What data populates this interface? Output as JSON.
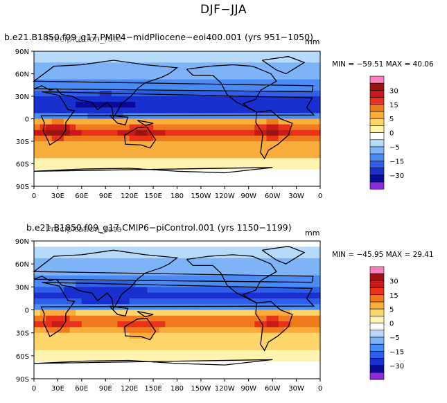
{
  "figure_title": "DJF−JJA",
  "panels": [
    {
      "title": "b.e21.B1850.f09_g17.PMIP4−midPliocene−eoi400.001  (yrs 951−1050)",
      "overlap_text": "Precipitation_rate",
      "units": "mm",
      "min_max": "MIN = −59.51  MAX =   40.06",
      "field": "pliocene"
    },
    {
      "title": "b.e21.B1850.f09_g17.CMIP6−piControl.001  (yrs 1150−1199)",
      "overlap_text": "Precipitation_rate",
      "units": "mm",
      "min_max": "MIN = −45.95  MAX =   29.41",
      "field": "picontrol"
    }
  ],
  "chart_data": [
    {
      "type": "heatmap",
      "title": "b.e21.B1850.f09_g17.PMIP4−midPliocene−eoi400.001  (yrs 951−1050)",
      "units": "mm",
      "x_ticks": [
        "0",
        "30E",
        "60E",
        "90E",
        "120E",
        "150E",
        "180",
        "150W",
        "120W",
        "90W",
        "60W",
        "30W",
        "0"
      ],
      "y_ticks": [
        "90N",
        "60N",
        "30N",
        "0",
        "30S",
        "60S",
        "90S"
      ],
      "xlim": [
        0,
        360
      ],
      "ylim": [
        -90,
        90
      ],
      "min": -59.51,
      "max": 40.06,
      "colorbar_levels": [
        "30",
        "15",
        "5",
        "0",
        "−5",
        "−15",
        "−30"
      ]
    },
    {
      "type": "heatmap",
      "title": "b.e21.B1850.f09_g17.CMIP6−piControl.001  (yrs 1150−1199)",
      "units": "mm",
      "x_ticks": [
        "0",
        "30E",
        "60E",
        "90E",
        "120E",
        "150E",
        "180",
        "150W",
        "120W",
        "90W",
        "60W",
        "30W",
        "0"
      ],
      "y_ticks": [
        "90N",
        "60N",
        "30N",
        "0",
        "30S",
        "60S",
        "90S"
      ],
      "xlim": [
        0,
        360
      ],
      "ylim": [
        -90,
        90
      ],
      "min": -45.95,
      "max": 29.41,
      "colorbar_levels": [
        "30",
        "15",
        "5",
        "0",
        "−5",
        "−15",
        "−30"
      ]
    }
  ],
  "colormap": [
    "#8a2be2",
    "#0a0a96",
    "#1a2fd0",
    "#2f5fe8",
    "#4a8cf5",
    "#7fb3f7",
    "#b8dafa",
    "#ffffff",
    "#fff3b0",
    "#fdd56a",
    "#f9ad3d",
    "#f07a1e",
    "#e8321a",
    "#c81a1a",
    "#9a1414",
    "#ff80c0"
  ]
}
